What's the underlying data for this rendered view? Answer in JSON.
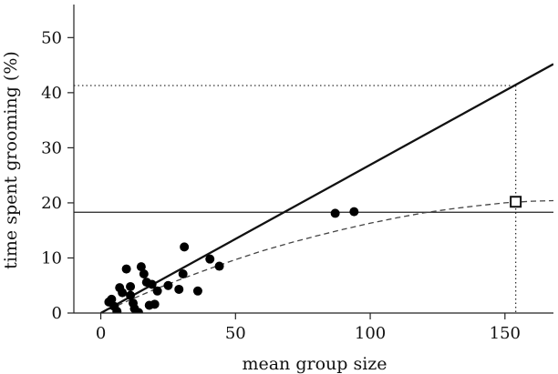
{
  "chart_data": {
    "type": "scatter",
    "title": "",
    "xlabel": "mean group size",
    "ylabel": "time spent grooming (%)",
    "xlim": [
      -10,
      168
    ],
    "ylim": [
      0,
      56
    ],
    "x_ticks": [
      0,
      50,
      100,
      150
    ],
    "y_ticks": [
      0,
      10,
      20,
      30,
      40,
      50
    ],
    "points": [
      {
        "x": 3,
        "y": 2.0
      },
      {
        "x": 4,
        "y": 2.5
      },
      {
        "x": 5,
        "y": 1.2
      },
      {
        "x": 6,
        "y": 0.3
      },
      {
        "x": 7,
        "y": 4.6
      },
      {
        "x": 8,
        "y": 3.7
      },
      {
        "x": 9.5,
        "y": 8.0
      },
      {
        "x": 11,
        "y": 4.8
      },
      {
        "x": 11,
        "y": 3.2
      },
      {
        "x": 12,
        "y": 1.8
      },
      {
        "x": 12.5,
        "y": 0.8
      },
      {
        "x": 14,
        "y": 0.1
      },
      {
        "x": 15,
        "y": 8.4
      },
      {
        "x": 16,
        "y": 7.1
      },
      {
        "x": 17,
        "y": 5.6
      },
      {
        "x": 18,
        "y": 1.4
      },
      {
        "x": 19,
        "y": 5.2
      },
      {
        "x": 20,
        "y": 1.6
      },
      {
        "x": 21,
        "y": 4.0
      },
      {
        "x": 25,
        "y": 5.0
      },
      {
        "x": 29,
        "y": 4.3
      },
      {
        "x": 30.5,
        "y": 7.1
      },
      {
        "x": 31,
        "y": 12.0
      },
      {
        "x": 36,
        "y": 4.0
      },
      {
        "x": 40.5,
        "y": 9.8
      },
      {
        "x": 44,
        "y": 8.5
      },
      {
        "x": 87,
        "y": 18.1
      },
      {
        "x": 94,
        "y": 18.4
      }
    ],
    "regression_line": {
      "x": [
        0,
        168
      ],
      "y": [
        0,
        45.2
      ]
    },
    "curve": {
      "x": [
        0,
        10,
        20,
        30,
        40,
        50,
        60,
        70,
        80,
        90,
        100,
        110,
        120,
        130,
        140,
        150,
        160,
        168
      ],
      "y": [
        0,
        2.2,
        4.3,
        6.2,
        8.0,
        9.7,
        11.3,
        12.7,
        14.0,
        15.2,
        16.3,
        17.3,
        18.2,
        18.9,
        19.5,
        20.0,
        20.3,
        20.4
      ]
    },
    "reference_hline": 18.3,
    "prediction_hline": 41.3,
    "prediction_vline": 154,
    "marker": {
      "x": 154,
      "y": 20.2
    }
  }
}
